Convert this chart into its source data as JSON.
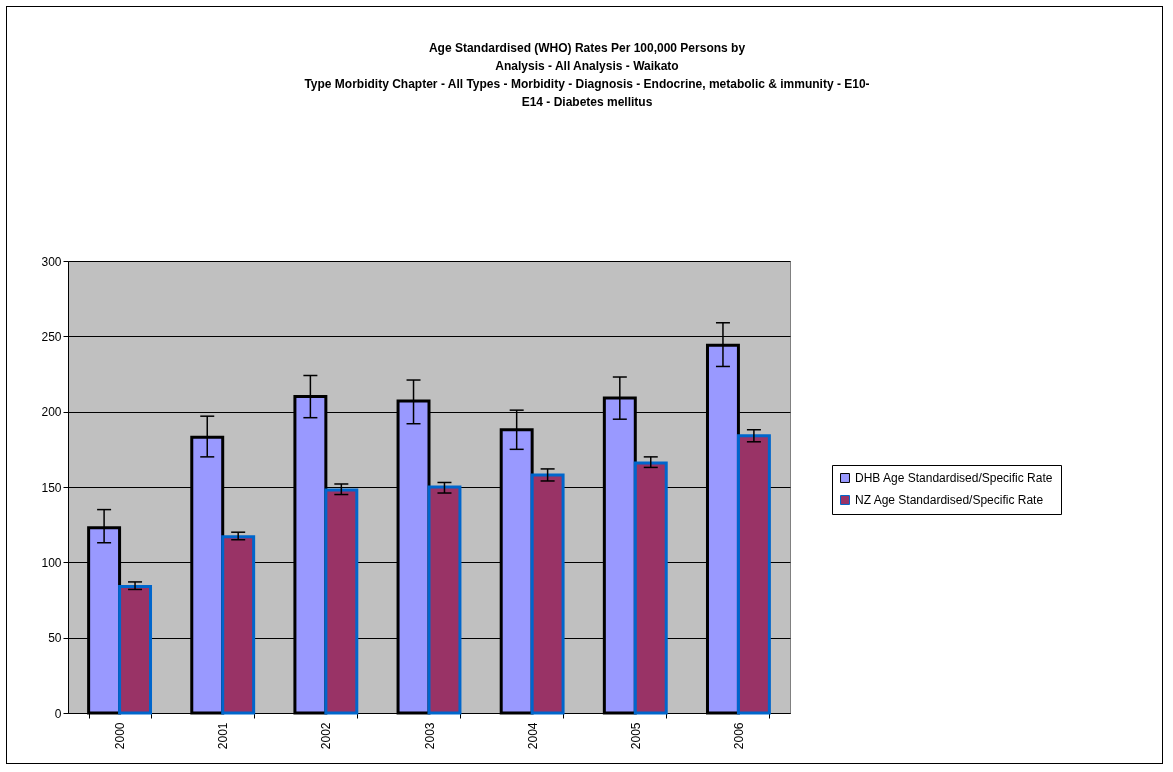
{
  "chart_data": {
    "type": "bar",
    "title": "Age Standardised (WHO) Rates Per 100,000 Persons by\nAnalysis - All Analysis - Waikato\nType Morbidity Chapter - All Types - Morbidity - Diagnosis - Endocrine, metabolic & immunity - E10-\nE14 - Diabetes mellitus",
    "categories": [
      "2000",
      "2001",
      "2002",
      "2003",
      "2004",
      "2005",
      "2006"
    ],
    "series": [
      {
        "name": "DHB Age Standardised/Specific Rate",
        "color": "#9999ff",
        "values": [
          123,
          183,
          210,
          207,
          188,
          209,
          244
        ],
        "errors": [
          [
            113,
            135
          ],
          [
            170,
            197
          ],
          [
            196,
            224
          ],
          [
            192,
            221
          ],
          [
            175,
            201
          ],
          [
            195,
            223
          ],
          [
            230,
            259
          ]
        ]
      },
      {
        "name": "NZ Age Standardised/Specific Rate",
        "color": "#993366",
        "values": [
          84,
          117,
          148,
          150,
          158,
          166,
          184
        ],
        "errors": [
          [
            82,
            87
          ],
          [
            115,
            120
          ],
          [
            145,
            152
          ],
          [
            146,
            153
          ],
          [
            154,
            162
          ],
          [
            163,
            170
          ],
          [
            180,
            188
          ]
        ]
      }
    ],
    "ylim": [
      0,
      300
    ],
    "yticks": [
      0,
      50,
      100,
      150,
      200,
      250,
      300
    ],
    "grid": "y",
    "legend": "right"
  }
}
